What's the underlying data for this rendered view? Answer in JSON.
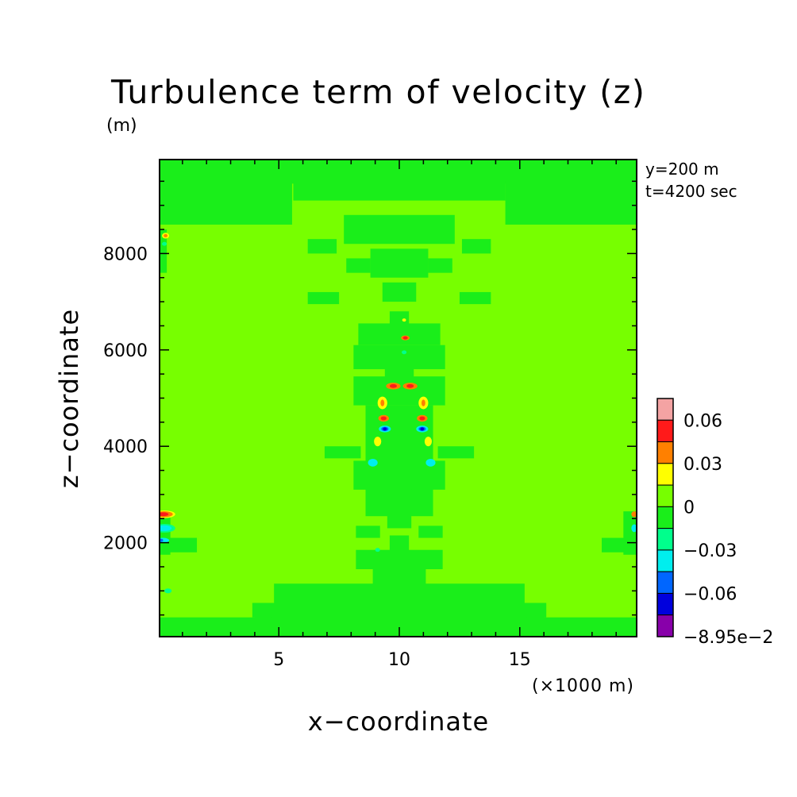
{
  "chart_data": {
    "type": "heatmap",
    "title": "Turbulence term of velocity (z)",
    "units_label": "(m)",
    "xlabel": "x−coordinate",
    "ylabel": "z−coordinate",
    "x_unit_label": "(×1000 m)",
    "annotations": [
      "y=200 m",
      "t=4200 sec"
    ],
    "xlim": [
      0.05,
      19.85
    ],
    "ylim": [
      50,
      9950
    ],
    "x_ticks": [
      {
        "value": 5,
        "label": "5"
      },
      {
        "value": 10,
        "label": "10"
      },
      {
        "value": 15,
        "label": "15"
      }
    ],
    "y_ticks": [
      {
        "value": 2000,
        "label": "2000"
      },
      {
        "value": 4000,
        "label": "4000"
      },
      {
        "value": 6000,
        "label": "6000"
      },
      {
        "value": 8000,
        "label": "8000"
      }
    ],
    "colorbar": {
      "levels": [
        {
          "color": "#f4a3a3"
        },
        {
          "color": "#ff1a1a"
        },
        {
          "color": "#ff8000"
        },
        {
          "color": "#ffff00"
        },
        {
          "color": "#77ff00"
        },
        {
          "color": "#1aee1a"
        },
        {
          "color": "#00ff8c"
        },
        {
          "color": "#00eeee"
        },
        {
          "color": "#0066ff"
        },
        {
          "color": "#0000dd"
        },
        {
          "color": "#8800aa"
        }
      ],
      "labels": [
        {
          "label": "0.06",
          "boundary": 1
        },
        {
          "label": "0.03",
          "boundary": 3
        },
        {
          "label": "0",
          "boundary": 5
        },
        {
          "label": "−0.03",
          "boundary": 7
        },
        {
          "label": "−0.06",
          "boundary": 9
        },
        {
          "label": "−8.95e−2",
          "boundary": 11
        }
      ]
    },
    "background_color": "#77ff00",
    "green_patches": [
      {
        "x": 0.05,
        "y": 9950,
        "w": 19.8,
        "h": 500
      },
      {
        "x": 0.05,
        "y": 9500,
        "w": 5.5,
        "h": 900
      },
      {
        "x": 14.4,
        "y": 9500,
        "w": 5.45,
        "h": 900
      },
      {
        "x": 5.6,
        "y": 9500,
        "w": 8.8,
        "h": 400
      },
      {
        "x": 7.7,
        "y": 8800,
        "w": 4.6,
        "h": 600
      },
      {
        "x": 6.2,
        "y": 8300,
        "w": 1.2,
        "h": 300
      },
      {
        "x": 12.6,
        "y": 8300,
        "w": 1.2,
        "h": 300
      },
      {
        "x": 8.8,
        "y": 8100,
        "w": 2.4,
        "h": 600
      },
      {
        "x": 7.8,
        "y": 7900,
        "w": 1.0,
        "h": 300
      },
      {
        "x": 11.2,
        "y": 7900,
        "w": 1.0,
        "h": 300
      },
      {
        "x": 9.3,
        "y": 7400,
        "w": 1.4,
        "h": 400
      },
      {
        "x": 6.2,
        "y": 7200,
        "w": 1.3,
        "h": 250
      },
      {
        "x": 12.5,
        "y": 7200,
        "w": 1.3,
        "h": 250
      },
      {
        "x": 9.6,
        "y": 6800,
        "w": 0.8,
        "h": 300
      },
      {
        "x": 8.3,
        "y": 6550,
        "w": 3.4,
        "h": 450
      },
      {
        "x": 8.1,
        "y": 6100,
        "w": 3.8,
        "h": 500
      },
      {
        "x": 9.4,
        "y": 5650,
        "w": 1.2,
        "h": 350
      },
      {
        "x": 8.1,
        "y": 5450,
        "w": 3.8,
        "h": 600
      },
      {
        "x": 8.6,
        "y": 4850,
        "w": 2.8,
        "h": 2300
      },
      {
        "x": 6.9,
        "y": 4000,
        "w": 1.5,
        "h": 250
      },
      {
        "x": 11.6,
        "y": 4000,
        "w": 1.5,
        "h": 250
      },
      {
        "x": 8.1,
        "y": 3700,
        "w": 3.8,
        "h": 600
      },
      {
        "x": 9.5,
        "y": 3100,
        "w": 1.0,
        "h": 800
      },
      {
        "x": 8.2,
        "y": 2350,
        "w": 1.0,
        "h": 250
      },
      {
        "x": 10.8,
        "y": 2350,
        "w": 1.0,
        "h": 250
      },
      {
        "x": 9.6,
        "y": 2150,
        "w": 0.8,
        "h": 400
      },
      {
        "x": 8.2,
        "y": 1850,
        "w": 3.6,
        "h": 400
      },
      {
        "x": 8.9,
        "y": 1450,
        "w": 2.2,
        "h": 350
      },
      {
        "x": 0.05,
        "y": 2650,
        "w": 0.45,
        "h": 900
      },
      {
        "x": 19.3,
        "y": 2650,
        "w": 0.55,
        "h": 900
      },
      {
        "x": 0.4,
        "y": 2100,
        "w": 1.2,
        "h": 300
      },
      {
        "x": 18.4,
        "y": 2100,
        "w": 1.2,
        "h": 300
      },
      {
        "x": 4.8,
        "y": 1150,
        "w": 10.4,
        "h": 500
      },
      {
        "x": 4.0,
        "y": 750,
        "w": 12.0,
        "h": 450
      },
      {
        "x": 0.05,
        "y": 450,
        "w": 19.8,
        "h": 400
      },
      {
        "x": 3.9,
        "y": 750,
        "w": 0.8,
        "h": 300
      },
      {
        "x": 15.3,
        "y": 750,
        "w": 0.8,
        "h": 300
      },
      {
        "x": 0.05,
        "y": 8500,
        "w": 0.3,
        "h": 900
      }
    ],
    "blobs": [
      {
        "x": 10.25,
        "y": 6250,
        "rx": 0.18,
        "ry": 50,
        "color": "#ff8000"
      },
      {
        "x": 10.25,
        "y": 6250,
        "rx": 0.1,
        "ry": 30,
        "color": "#ff1a1a"
      },
      {
        "x": 10.2,
        "y": 6620,
        "rx": 0.08,
        "ry": 30,
        "color": "#ffff00"
      },
      {
        "x": 9.75,
        "y": 5250,
        "rx": 0.3,
        "ry": 70,
        "color": "#ff8000"
      },
      {
        "x": 9.75,
        "y": 5250,
        "rx": 0.15,
        "ry": 40,
        "color": "#ff1a1a"
      },
      {
        "x": 10.45,
        "y": 5250,
        "rx": 0.3,
        "ry": 70,
        "color": "#ff8000"
      },
      {
        "x": 10.45,
        "y": 5250,
        "rx": 0.15,
        "ry": 40,
        "color": "#ff1a1a"
      },
      {
        "x": 9.3,
        "y": 4900,
        "rx": 0.2,
        "ry": 130,
        "color": "#ffff00"
      },
      {
        "x": 9.3,
        "y": 4900,
        "rx": 0.08,
        "ry": 70,
        "color": "#ff8000"
      },
      {
        "x": 11.0,
        "y": 4900,
        "rx": 0.2,
        "ry": 130,
        "color": "#ffff00"
      },
      {
        "x": 11.0,
        "y": 4900,
        "rx": 0.08,
        "ry": 70,
        "color": "#ff8000"
      },
      {
        "x": 9.35,
        "y": 4580,
        "rx": 0.22,
        "ry": 70,
        "color": "#ff8000"
      },
      {
        "x": 9.35,
        "y": 4580,
        "rx": 0.12,
        "ry": 40,
        "color": "#ff1a1a"
      },
      {
        "x": 10.95,
        "y": 4580,
        "rx": 0.22,
        "ry": 70,
        "color": "#ff8000"
      },
      {
        "x": 10.95,
        "y": 4580,
        "rx": 0.12,
        "ry": 40,
        "color": "#ff1a1a"
      },
      {
        "x": 9.4,
        "y": 4360,
        "rx": 0.25,
        "ry": 70,
        "color": "#00eeee"
      },
      {
        "x": 9.4,
        "y": 4360,
        "rx": 0.15,
        "ry": 45,
        "color": "#0066ff"
      },
      {
        "x": 9.4,
        "y": 4360,
        "rx": 0.08,
        "ry": 25,
        "color": "#0000dd"
      },
      {
        "x": 10.95,
        "y": 4360,
        "rx": 0.25,
        "ry": 70,
        "color": "#00eeee"
      },
      {
        "x": 10.95,
        "y": 4360,
        "rx": 0.15,
        "ry": 45,
        "color": "#0066ff"
      },
      {
        "x": 10.95,
        "y": 4360,
        "rx": 0.08,
        "ry": 25,
        "color": "#0000dd"
      },
      {
        "x": 9.1,
        "y": 4100,
        "rx": 0.15,
        "ry": 100,
        "color": "#ffff00"
      },
      {
        "x": 11.2,
        "y": 4100,
        "rx": 0.15,
        "ry": 100,
        "color": "#ffff00"
      },
      {
        "x": 8.9,
        "y": 3660,
        "rx": 0.2,
        "ry": 80,
        "color": "#00eeee"
      },
      {
        "x": 11.3,
        "y": 3660,
        "rx": 0.2,
        "ry": 80,
        "color": "#00eeee"
      },
      {
        "x": 10.2,
        "y": 5950,
        "rx": 0.1,
        "ry": 40,
        "color": "#00ff8c"
      },
      {
        "x": 0.25,
        "y": 2590,
        "rx": 0.45,
        "ry": 80,
        "color": "#ffff00"
      },
      {
        "x": 0.25,
        "y": 2590,
        "rx": 0.35,
        "ry": 60,
        "color": "#ff8000"
      },
      {
        "x": 0.2,
        "y": 2590,
        "rx": 0.22,
        "ry": 40,
        "color": "#ff1a1a"
      },
      {
        "x": 0.25,
        "y": 2300,
        "rx": 0.45,
        "ry": 90,
        "color": "#00ff8c"
      },
      {
        "x": 0.25,
        "y": 2300,
        "rx": 0.3,
        "ry": 60,
        "color": "#00eeee"
      },
      {
        "x": 0.2,
        "y": 2050,
        "rx": 0.25,
        "ry": 50,
        "color": "#00eeee"
      },
      {
        "x": 0.1,
        "y": 2050,
        "rx": 0.1,
        "ry": 30,
        "color": "#0066ff"
      },
      {
        "x": 19.75,
        "y": 2590,
        "rx": 0.12,
        "ry": 60,
        "color": "#ff8000"
      },
      {
        "x": 19.75,
        "y": 2300,
        "rx": 0.12,
        "ry": 80,
        "color": "#00eeee"
      },
      {
        "x": 0.3,
        "y": 8370,
        "rx": 0.15,
        "ry": 60,
        "color": "#ffff00"
      },
      {
        "x": 0.3,
        "y": 8370,
        "rx": 0.08,
        "ry": 30,
        "color": "#ff8000"
      },
      {
        "x": 0.25,
        "y": 8200,
        "rx": 0.1,
        "ry": 40,
        "color": "#00ff8c"
      },
      {
        "x": 9.1,
        "y": 1850,
        "rx": 0.1,
        "ry": 40,
        "color": "#00ff8c"
      },
      {
        "x": 0.4,
        "y": 1000,
        "rx": 0.15,
        "ry": 50,
        "color": "#00ff8c"
      }
    ]
  }
}
